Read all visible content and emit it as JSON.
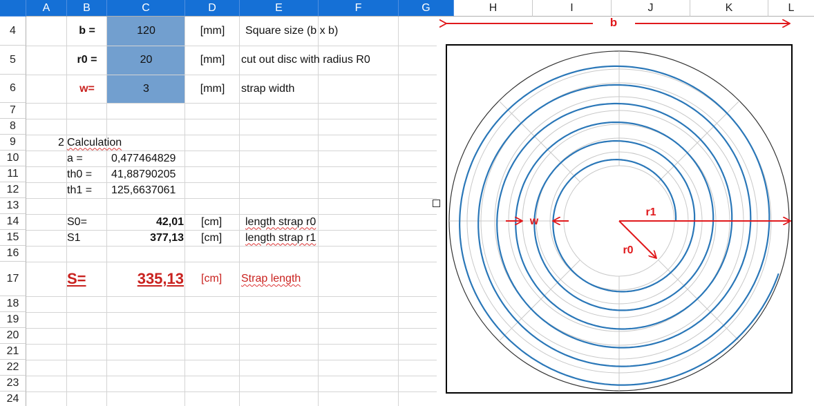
{
  "columns": [
    "A",
    "B",
    "C",
    "D",
    "E",
    "F",
    "G",
    "H",
    "I",
    "J",
    "K",
    "L"
  ],
  "rows": [
    "4",
    "5",
    "6",
    "7",
    "8",
    "9",
    "10",
    "11",
    "12",
    "13",
    "14",
    "15",
    "16",
    "17",
    "18",
    "19",
    "20",
    "21",
    "22",
    "23",
    "24"
  ],
  "inputs": {
    "b": {
      "label": "b =",
      "value": "120",
      "unit": "[mm]",
      "desc": "Square size (b x b)"
    },
    "r0": {
      "label": "r0 =",
      "value": "20",
      "unit": "[mm]",
      "desc": "cut out disc with radius R0"
    },
    "w": {
      "label": "w=",
      "value": "3",
      "unit": "[mm]",
      "desc": "strap width"
    }
  },
  "calc": {
    "heading_num": "2",
    "heading": "Calculation",
    "a_label": "a =",
    "a_value": "0,477464829",
    "th0_label": "th0 =",
    "th0_value": "41,88790205",
    "th1_label": "th1 =",
    "th1_value": "125,6637061"
  },
  "results": {
    "s0_label": "S0=",
    "s0_value": "42,01",
    "s0_unit": "[cm]",
    "s0_desc": "length strap r0",
    "s1_label": "S1",
    "s1_value": "377,13",
    "s1_unit": "[cm]",
    "s1_desc": "length strap r1",
    "s_label": "S=",
    "s_value": "335,13",
    "s_unit": "[cm]",
    "s_desc": "Strap length"
  },
  "figure": {
    "label_b": "b",
    "label_w": "w",
    "label_r1": "r1",
    "label_r0": "r0",
    "spiral_color": "#2a77b8",
    "annotation_color": "#e0191c",
    "grid_color": "#c8c8c8"
  }
}
